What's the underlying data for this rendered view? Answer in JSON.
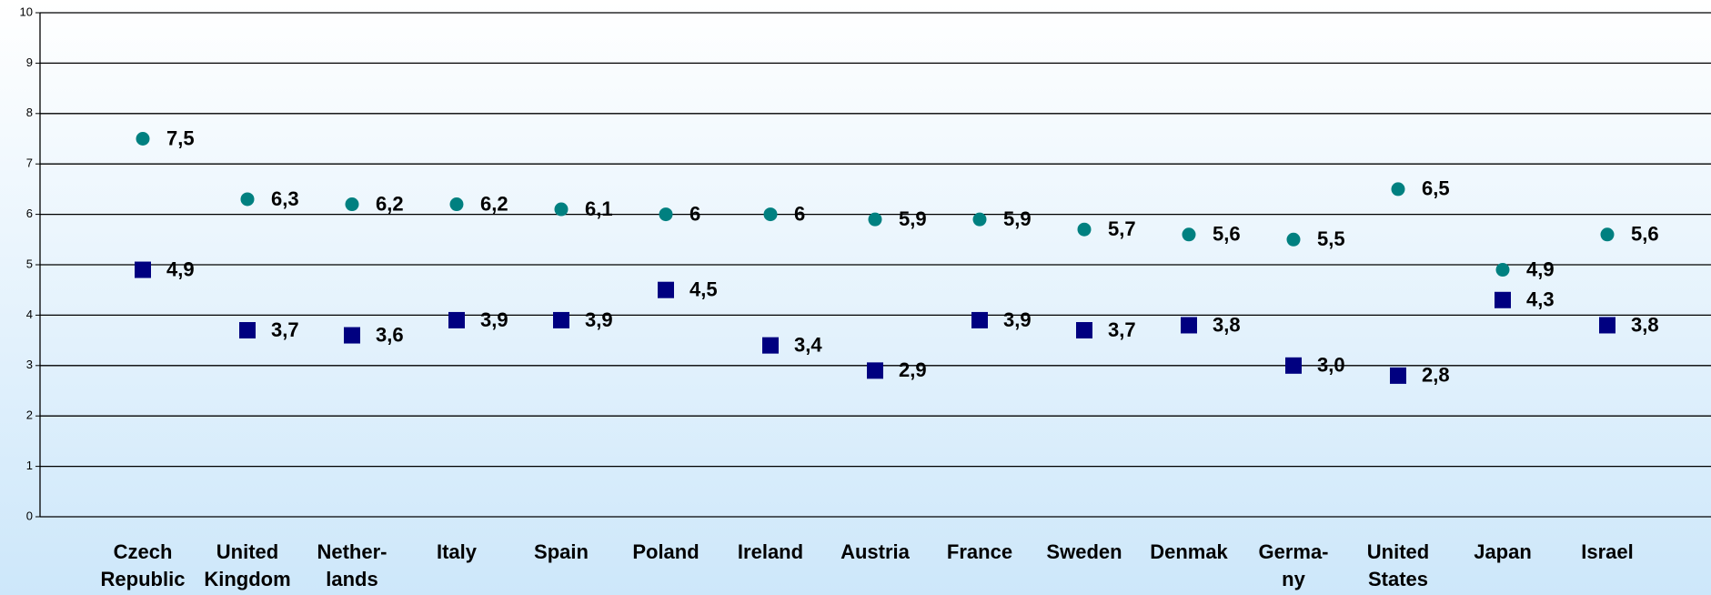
{
  "chart_data": {
    "type": "scatter",
    "categories": [
      [
        "Czech",
        "Republic"
      ],
      [
        "United",
        "Kingdom"
      ],
      [
        "Nether-",
        "lands"
      ],
      [
        "Italy"
      ],
      [
        "Spain"
      ],
      [
        "Poland"
      ],
      [
        "Ireland"
      ],
      [
        "Austria"
      ],
      [
        "France"
      ],
      [
        "Sweden"
      ],
      [
        "Denmak"
      ],
      [
        "Germa-",
        "ny"
      ],
      [
        "United",
        "States"
      ],
      [
        "Japan"
      ],
      [
        "Israel"
      ]
    ],
    "series": [
      {
        "color": "#008080",
        "marker": "circle",
        "values": [
          7.5,
          6.3,
          6.2,
          6.2,
          6.1,
          6,
          6,
          5.9,
          5.9,
          5.7,
          5.6,
          5.5,
          6.5,
          4.9,
          5.6
        ],
        "value_labels": [
          "7,5",
          "6,3",
          "6,2",
          "6,2",
          "6,1",
          "6",
          "6",
          "5,9",
          "5,9",
          "5,7",
          "5,6",
          "5,5",
          "6,5",
          "4,9",
          "5,6"
        ]
      },
      {
        "color": "#000080",
        "marker": "square",
        "values": [
          4.9,
          3.7,
          3.6,
          3.9,
          3.9,
          4.5,
          3.4,
          2.9,
          3.9,
          3.7,
          3.8,
          3.0,
          2.8,
          4.3,
          3.8
        ],
        "value_labels": [
          "4,9",
          "3,7",
          "3,6",
          "3,9",
          "3,9",
          "4,5",
          "3,4",
          "2,9",
          "3,9",
          "3,7",
          "3,8",
          "3,0",
          "2,8",
          "4,3",
          "3,8"
        ]
      }
    ],
    "ylim": [
      0,
      10
    ],
    "yticks": [
      0,
      1,
      2,
      3,
      4,
      5,
      6,
      7,
      8,
      9,
      10
    ],
    "grid": true
  }
}
